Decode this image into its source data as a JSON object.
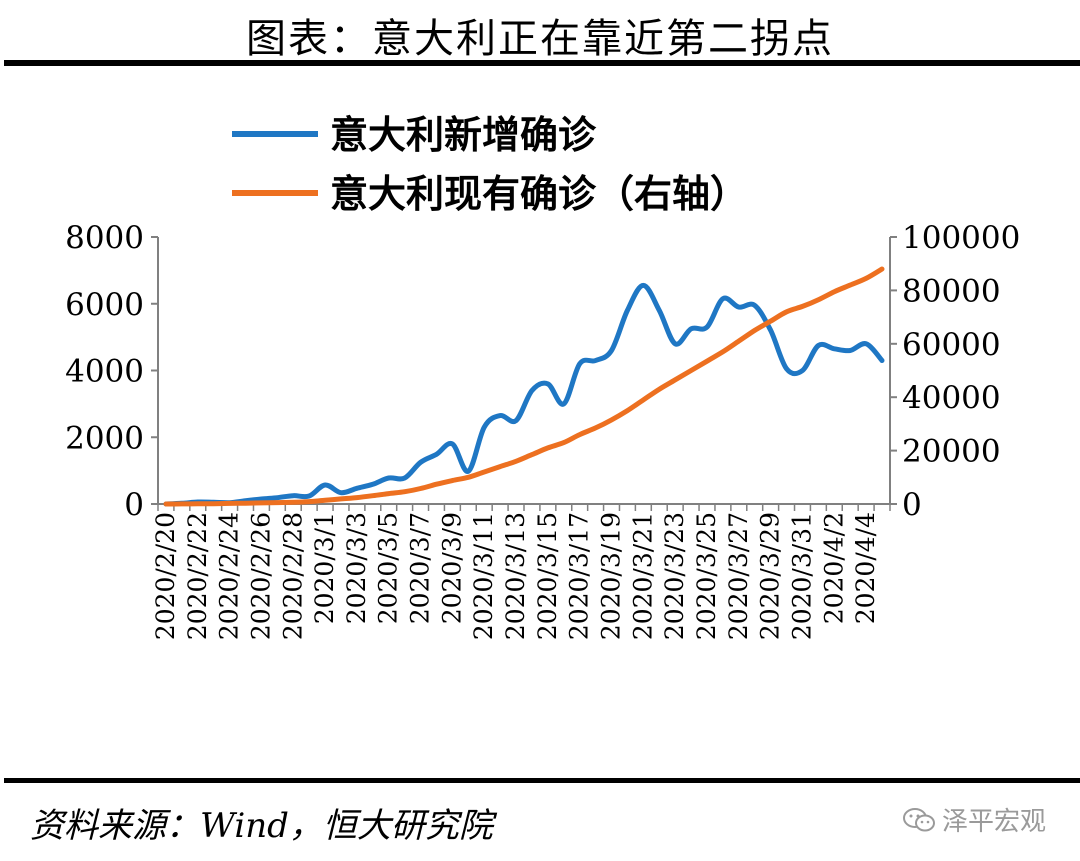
{
  "header": {
    "title": "图表：意大利正在靠近第二拐点"
  },
  "footer": {
    "source": "资料来源：Wind，恒大研究院",
    "watermark": "泽平宏观"
  },
  "colors": {
    "new_cases": "#1f77c4",
    "active_cases": "#ed7020"
  },
  "chart_data": {
    "type": "line",
    "title": "图表：意大利正在靠近第二拐点",
    "legend": [
      "意大利新增确诊",
      "意大利现有确诊（右轴）"
    ],
    "legend_position": "top",
    "x": [
      "2020/2/20",
      "2020/2/21",
      "2020/2/22",
      "2020/2/23",
      "2020/2/24",
      "2020/2/25",
      "2020/2/26",
      "2020/2/27",
      "2020/2/28",
      "2020/2/29",
      "2020/3/1",
      "2020/3/2",
      "2020/3/3",
      "2020/3/4",
      "2020/3/5",
      "2020/3/6",
      "2020/3/7",
      "2020/3/8",
      "2020/3/9",
      "2020/3/10",
      "2020/3/11",
      "2020/3/12",
      "2020/3/13",
      "2020/3/14",
      "2020/3/15",
      "2020/3/16",
      "2020/3/17",
      "2020/3/18",
      "2020/3/19",
      "2020/3/20",
      "2020/3/21",
      "2020/3/22",
      "2020/3/23",
      "2020/3/24",
      "2020/3/25",
      "2020/3/26",
      "2020/3/27",
      "2020/3/28",
      "2020/3/29",
      "2020/3/30",
      "2020/3/31",
      "2020/4/1",
      "2020/4/2",
      "2020/4/3",
      "2020/4/4",
      "2020/4/5"
    ],
    "x_tick_labels": [
      "2020/2/20",
      "2020/2/22",
      "2020/2/24",
      "2020/2/26",
      "2020/2/28",
      "2020/3/1",
      "2020/3/3",
      "2020/3/5",
      "2020/3/7",
      "2020/3/9",
      "2020/3/11",
      "2020/3/13",
      "2020/3/15",
      "2020/3/17",
      "2020/3/19",
      "2020/3/21",
      "2020/3/23",
      "2020/3/25",
      "2020/3/27",
      "2020/3/29",
      "2020/3/31",
      "2020/4/2",
      "2020/4/4"
    ],
    "series": [
      {
        "name": "意大利新增确诊",
        "axis": "left",
        "values": [
          0,
          20,
          60,
          50,
          40,
          100,
          150,
          190,
          250,
          240,
          570,
          340,
          470,
          590,
          780,
          780,
          1250,
          1490,
          1800,
          980,
          2300,
          2650,
          2500,
          3400,
          3600,
          3000,
          4200,
          4300,
          4600,
          5800,
          6550,
          5800,
          4800,
          5250,
          5300,
          6150,
          5900,
          5950,
          5200,
          4050,
          4000,
          4750,
          4650,
          4600,
          4800,
          4300
        ]
      },
      {
        "name": "意大利现有确诊（右轴）",
        "axis": "right",
        "values": [
          0,
          20,
          70,
          130,
          220,
          300,
          400,
          530,
          650,
          900,
          1400,
          1900,
          2400,
          3100,
          3900,
          4600,
          5800,
          7400,
          8800,
          10000,
          12000,
          14000,
          16000,
          18500,
          21000,
          23000,
          26000,
          28500,
          31500,
          35000,
          39000,
          43000,
          46500,
          50000,
          53500,
          57000,
          61000,
          65000,
          68500,
          72000,
          74000,
          76500,
          79500,
          82000,
          84500,
          88000
        ]
      }
    ],
    "y_left": {
      "min": 0,
      "max": 8000,
      "ticks": [
        0,
        2000,
        4000,
        6000,
        8000
      ]
    },
    "y_right": {
      "min": 0,
      "max": 100000,
      "ticks": [
        0,
        20000,
        40000,
        60000,
        80000,
        100000
      ]
    },
    "grid": false
  }
}
